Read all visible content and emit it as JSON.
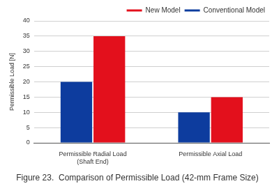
{
  "chart_data": {
    "type": "bar",
    "title": "Figure 23.  Comparison of Permissible Load (42-mm Frame Size)",
    "ylabel": "Permissible Load [N]",
    "categories": [
      "Permissible Radial Load\n(Shaft End)",
      "Permissible Axial Load"
    ],
    "series": [
      {
        "name": "Conventional Model",
        "color": "#0d3c9e",
        "values": [
          20,
          10
        ]
      },
      {
        "name": "New Model",
        "color": "#e3101c",
        "values": [
          35,
          15
        ]
      }
    ],
    "ylim": [
      0,
      40
    ],
    "yticks": [
      0,
      5,
      10,
      15,
      20,
      25,
      30,
      35,
      40
    ],
    "grid": true,
    "legend": "top-right"
  }
}
